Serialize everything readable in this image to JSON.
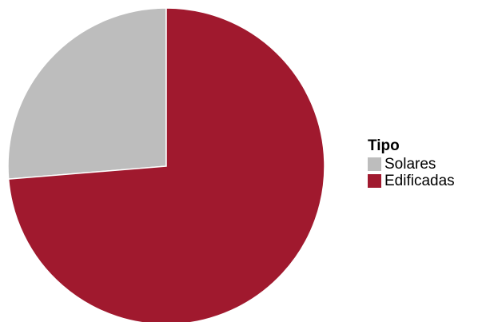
{
  "chart_data": {
    "type": "pie",
    "legend_title": "Tipo",
    "legend_position": "right",
    "slices": [
      {
        "label": "Solares",
        "value": 26.3,
        "color": "#bdbdbd"
      },
      {
        "label": "Edificadas",
        "value": 73.7,
        "color": "#a0192e"
      }
    ]
  }
}
